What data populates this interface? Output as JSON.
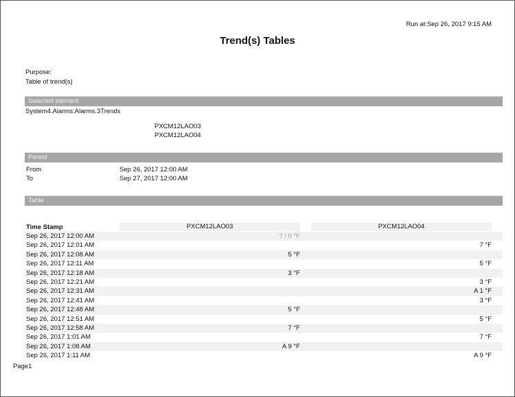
{
  "run_at": "Run at:Sep 26, 2017 9:15 AM",
  "title": "Trend(s) Tables",
  "purpose": {
    "label": "Purpose:",
    "value": "Table of trend(s)"
  },
  "selected_element": {
    "header": "Selected element",
    "path": "System4.Alarms:Alarms.3Trends",
    "points": [
      "PXCM12LAO03",
      "PXCM12LAO04"
    ]
  },
  "period": {
    "header": "Period",
    "from_label": "From",
    "from": "Sep 26, 2017 12:00 AM",
    "to_label": "To",
    "to": "Sep 27, 2017 12:00 AM"
  },
  "table": {
    "header": "Table",
    "columns": [
      "Time Stamp",
      "PXCM12LAO03",
      "PXCM12LAO04"
    ],
    "rows": [
      {
        "ts": "Sep 26, 2017 12:00 AM",
        "v1": "? ! 0 °F",
        "v2": "",
        "v1_muted": true
      },
      {
        "ts": "Sep 26, 2017 12:01 AM",
        "v1": "",
        "v2": "7 °F"
      },
      {
        "ts": "Sep 26, 2017 12:08 AM",
        "v1": "5 °F",
        "v2": ""
      },
      {
        "ts": "Sep 26, 2017 12:11 AM",
        "v1": "",
        "v2": "5 °F"
      },
      {
        "ts": "Sep 26, 2017 12:18 AM",
        "v1": "3 °F",
        "v2": ""
      },
      {
        "ts": "Sep 26, 2017 12:21 AM",
        "v1": "",
        "v2": "3 °F"
      },
      {
        "ts": "Sep 26, 2017 12:31 AM",
        "v1": "",
        "v2": "A 1 °F"
      },
      {
        "ts": "Sep 26, 2017 12:41 AM",
        "v1": "",
        "v2": "3 °F"
      },
      {
        "ts": "Sep 26, 2017 12:48 AM",
        "v1": "5 °F",
        "v2": ""
      },
      {
        "ts": "Sep 26, 2017 12:51 AM",
        "v1": "",
        "v2": "5 °F"
      },
      {
        "ts": "Sep 26, 2017 12:58 AM",
        "v1": "7 °F",
        "v2": ""
      },
      {
        "ts": "Sep 26, 2017 1:01 AM",
        "v1": "",
        "v2": "7 °F"
      },
      {
        "ts": "Sep 26, 2017 1:08 AM",
        "v1": "A 9 °F",
        "v2": ""
      },
      {
        "ts": "Sep 26, 2017 1:11 AM",
        "v1": "",
        "v2": "A 9 °F"
      }
    ]
  },
  "footer": {
    "page": "Page1"
  }
}
